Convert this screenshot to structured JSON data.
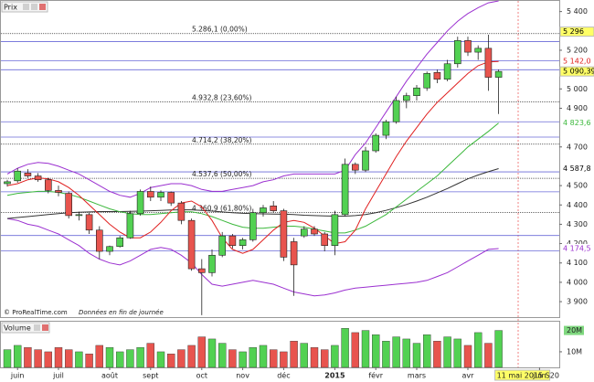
{
  "chart_data": {
    "type": "candlestick",
    "title": "Prix",
    "source": "© ProRealTime.com",
    "note": "Données en fin de journée",
    "categories": [
      null,
      "juin",
      null,
      null,
      null,
      "juil",
      null,
      null,
      null,
      null,
      "août",
      null,
      null,
      null,
      "sept",
      null,
      null,
      null,
      null,
      "oct",
      null,
      null,
      null,
      "nov",
      null,
      null,
      null,
      "déc",
      null,
      null,
      null,
      null,
      "2015",
      null,
      null,
      null,
      "févr",
      null,
      null,
      null,
      "mars",
      null,
      null,
      null,
      null,
      "avr",
      null,
      null,
      "11 mai 2015 S20",
      null,
      null,
      null,
      "juin"
    ],
    "open": [
      4510,
      4525,
      4565,
      4550,
      4530,
      4475,
      4460,
      4345,
      4350,
      4270,
      4160,
      4185,
      4230,
      4355,
      4470,
      4440,
      4465,
      4410,
      4320,
      4070,
      4050,
      4140,
      4240,
      4190,
      4220,
      4360,
      4395,
      4370,
      4210,
      4240,
      4275,
      4250,
      4190,
      4350,
      4610,
      4580,
      4680,
      4760,
      4830,
      4940,
      4965,
      5005,
      5085,
      5050,
      5130,
      5250,
      5190,
      5210,
      5060,
      null,
      null,
      null,
      null
    ],
    "high": [
      4530,
      4590,
      4585,
      4565,
      4540,
      4500,
      4470,
      4365,
      4360,
      4290,
      4190,
      4240,
      4370,
      4480,
      4495,
      4475,
      4470,
      4420,
      4330,
      4120,
      4170,
      4260,
      4250,
      4230,
      4380,
      4400,
      4420,
      4380,
      4230,
      4290,
      4290,
      4260,
      4370,
      4640,
      4620,
      4700,
      4770,
      4840,
      4960,
      4980,
      5020,
      5090,
      5100,
      5150,
      5270,
      5270,
      5225,
      5280,
      5100,
      null,
      null,
      null,
      null
    ],
    "low": [
      4495,
      4515,
      4540,
      4520,
      4460,
      4445,
      4330,
      4320,
      4250,
      4120,
      4140,
      4180,
      4225,
      4345,
      4420,
      4420,
      4395,
      4300,
      4060,
      3830,
      4030,
      4130,
      4175,
      4170,
      4210,
      4340,
      4360,
      4110,
      3930,
      4230,
      4240,
      4160,
      4140,
      4340,
      4560,
      4570,
      4670,
      4740,
      4820,
      4900,
      4940,
      4990,
      5030,
      5040,
      5110,
      5170,
      5150,
      4990,
      4870,
      null,
      null,
      null,
      null
    ],
    "close": [
      4520,
      4575,
      4550,
      4530,
      4475,
      4465,
      4345,
      4350,
      4270,
      4160,
      4185,
      4230,
      4355,
      4470,
      4440,
      4465,
      4410,
      4320,
      4070,
      4050,
      4140,
      4240,
      4190,
      4220,
      4360,
      4385,
      4370,
      4130,
      4090,
      4275,
      4250,
      4190,
      4350,
      4610,
      4580,
      4680,
      4760,
      4830,
      4940,
      4965,
      5005,
      5080,
      5050,
      5130,
      5250,
      5190,
      5210,
      5060,
      5090.39,
      null,
      null,
      null,
      null
    ],
    "up_color": "#52d152",
    "down_color": "#e8544e",
    "ylim": [
      3820,
      5455
    ],
    "yticks": [
      {
        "value": 5400,
        "label": "5 400"
      },
      {
        "value": 5200,
        "label": "5 200"
      },
      {
        "value": 5000,
        "label": "5 000"
      },
      {
        "value": 4900,
        "label": "4 900"
      },
      {
        "value": 4700,
        "label": "4 700"
      },
      {
        "value": 4500,
        "label": "4 500"
      },
      {
        "value": 4400,
        "label": "4 400"
      },
      {
        "value": 4300,
        "label": "4 300"
      },
      {
        "value": 4200,
        "label": "4 200"
      },
      {
        "value": 4100,
        "label": "4 100"
      },
      {
        "value": 4000,
        "label": "4 000"
      },
      {
        "value": 3900,
        "label": "3 900"
      }
    ],
    "lines": [
      {
        "color": "#9b30d0",
        "values": [
          4560,
          4590,
          4610,
          4620,
          4615,
          4600,
          4580,
          4560,
          4530,
          4500,
          4470,
          4450,
          4440,
          4460,
          4490,
          4500,
          4510,
          4510,
          4500,
          4480,
          4470,
          4470,
          4480,
          4490,
          4500,
          4520,
          4530,
          4550,
          4560,
          4560,
          4560,
          4560,
          4560,
          4580,
          4660,
          4720,
          4800,
          4880,
          4960,
          5040,
          5110,
          5180,
          5240,
          5300,
          5350,
          5390,
          5420,
          5445,
          5455,
          null,
          null,
          null,
          null
        ]
      },
      {
        "color": "#9b30d0",
        "values": [
          4330,
          4320,
          4300,
          4290,
          4270,
          4250,
          4220,
          4190,
          4150,
          4120,
          4100,
          4090,
          4110,
          4140,
          4170,
          4180,
          4170,
          4140,
          4100,
          4040,
          3990,
          3980,
          3990,
          4000,
          4010,
          4000,
          3990,
          3970,
          3950,
          3940,
          3930,
          3935,
          3945,
          3960,
          3970,
          3975,
          3980,
          3985,
          3990,
          3995,
          4000,
          4010,
          4030,
          4050,
          4080,
          4110,
          4140,
          4170,
          4174.5,
          null,
          null,
          null,
          null
        ]
      },
      {
        "color": "#333333",
        "values": [
          4330,
          4335,
          4340,
          4345,
          4350,
          4355,
          4360,
          4362,
          4364,
          4366,
          4366,
          4366,
          4367,
          4368,
          4370,
          4372,
          4374,
          4375,
          4375,
          4372,
          4368,
          4364,
          4360,
          4357,
          4355,
          4354,
          4353,
          4352,
          4350,
          4347,
          4345,
          4343,
          4342,
          4342,
          4345,
          4350,
          4360,
          4372,
          4386,
          4402,
          4420,
          4440,
          4462,
          4485,
          4510,
          4535,
          4555,
          4572,
          4587.8,
          null,
          null,
          null,
          null
        ]
      },
      {
        "color": "#3cb83c",
        "values": [
          4450,
          4460,
          4465,
          4470,
          4470,
          4465,
          4455,
          4440,
          4420,
          4400,
          4380,
          4365,
          4355,
          4350,
          4350,
          4355,
          4360,
          4365,
          4365,
          4355,
          4340,
          4320,
          4300,
          4285,
          4280,
          4280,
          4285,
          4290,
          4290,
          4285,
          4275,
          4265,
          4255,
          4255,
          4270,
          4290,
          4320,
          4350,
          4390,
          4430,
          4470,
          4510,
          4550,
          4600,
          4650,
          4700,
          4740,
          4780,
          4823.6,
          null,
          null,
          null,
          null
        ]
      },
      {
        "color": "#e02020",
        "values": [
          4500,
          4510,
          4530,
          4540,
          4535,
          4520,
          4490,
          4450,
          4400,
          4350,
          4300,
          4260,
          4230,
          4230,
          4260,
          4310,
          4370,
          4410,
          4420,
          4390,
          4320,
          4230,
          4170,
          4150,
          4170,
          4220,
          4270,
          4310,
          4320,
          4310,
          4280,
          4240,
          4200,
          4210,
          4270,
          4380,
          4470,
          4560,
          4650,
          4730,
          4800,
          4870,
          4930,
          4980,
          5030,
          5080,
          5120,
          5140,
          5142,
          null,
          null,
          null,
          null
        ]
      }
    ],
    "h_lines": [
      5245,
      5146,
      5099,
      4830,
      4751,
      4571,
      4468,
      4242,
      4162
    ],
    "levels": [
      {
        "value": 5286.1,
        "label": "5.286,1 (0,00%)"
      },
      {
        "value": 4932.8,
        "label": "4.932,8 (23,60%)"
      },
      {
        "value": 4714.2,
        "label": "4.714,2 (38,20%)"
      },
      {
        "value": 4537.6,
        "label": "4.537,6 (50,00%)"
      },
      {
        "value": 4360.9,
        "label": "4.360,9 (61,80%)"
      }
    ],
    "price_tags": [
      {
        "value": 5296,
        "label": "5 296",
        "color": "#000000",
        "background": "#ffff66"
      },
      {
        "value": 5142.0,
        "label": "5 142,0",
        "color": "#e02020"
      },
      {
        "value": 5090.39,
        "label": "5 090,39",
        "color": "#000000",
        "background": "#ffff66"
      },
      {
        "value": 4823.6,
        "label": "4 823,6",
        "color": "#3cb83c"
      },
      {
        "value": 4587.8,
        "label": "4 587,8",
        "color": "#000000"
      },
      {
        "value": 4174.5,
        "label": "4 174,5",
        "color": "#9b30d0"
      }
    ],
    "volume": {
      "title": "Volume",
      "values": [
        11,
        13,
        12,
        11,
        10,
        12,
        11,
        10,
        9,
        13,
        12,
        10,
        11,
        12,
        14,
        10,
        9,
        11,
        13,
        17,
        16,
        14,
        11,
        10,
        12,
        13,
        11,
        10,
        15,
        14,
        12,
        11,
        13,
        21,
        19,
        20,
        18,
        15,
        17,
        16,
        14,
        18,
        15,
        17,
        16,
        13,
        19,
        14,
        20,
        null,
        null,
        null,
        null
      ],
      "ylim": [
        2.7,
        24.1
      ],
      "yticks": [
        {
          "value": 10,
          "label": "10M"
        },
        {
          "value": 20,
          "label": "20M"
        }
      ],
      "last_tag_color": "#7fd87f"
    }
  }
}
